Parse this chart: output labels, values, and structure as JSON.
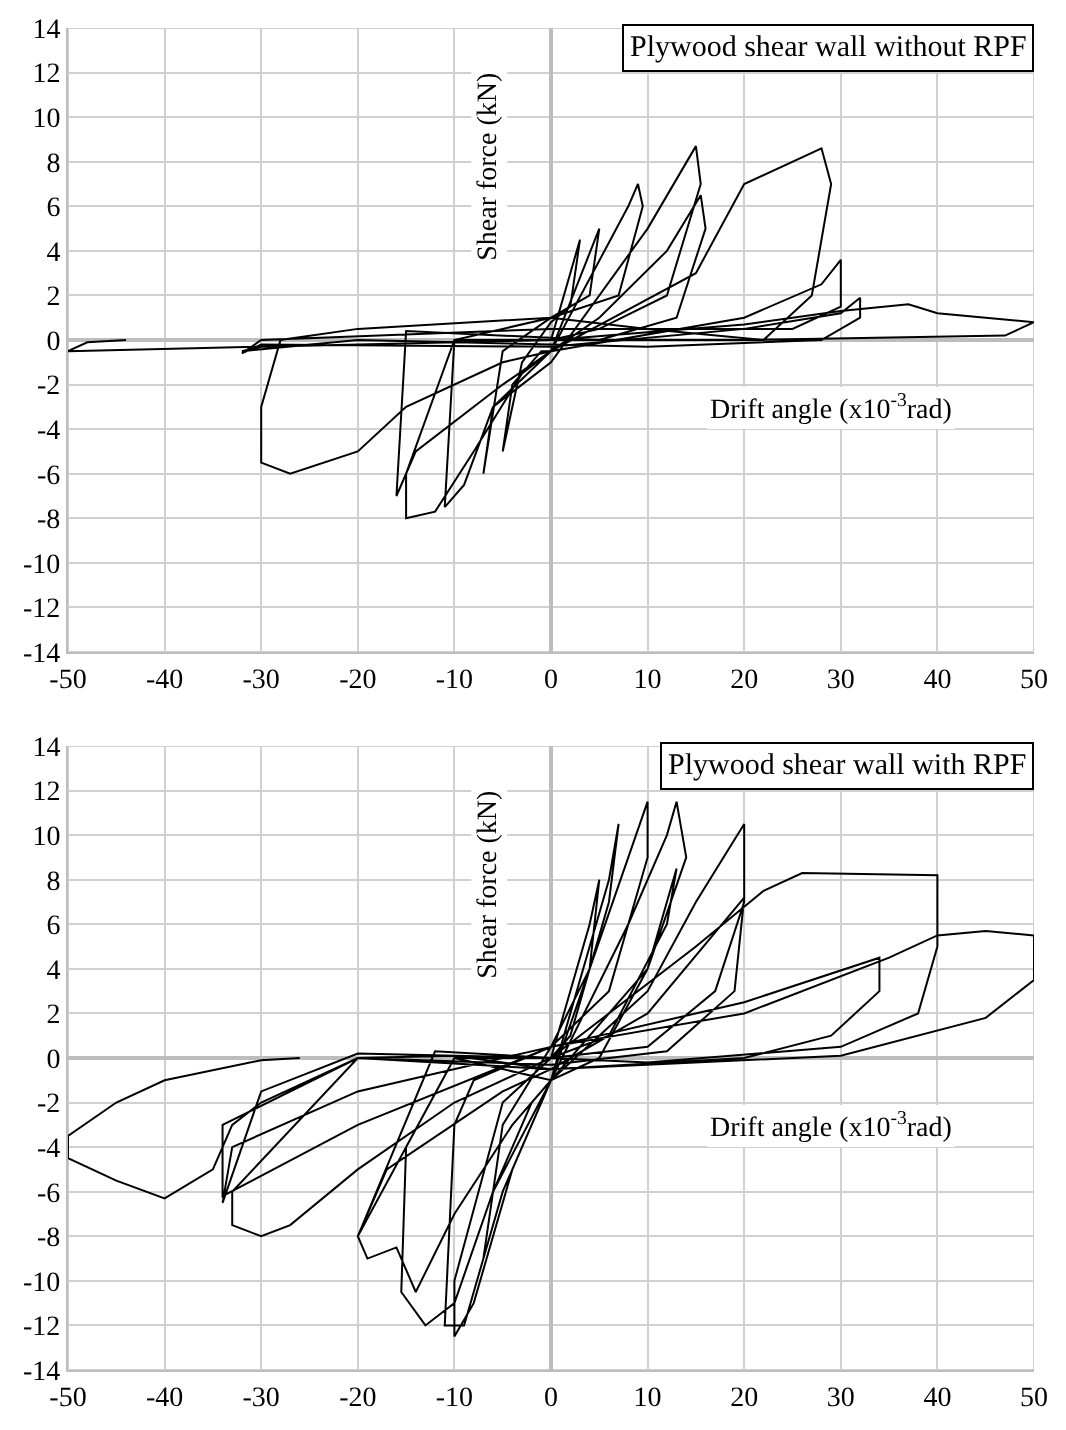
{
  "chart_data": [
    {
      "type": "line",
      "title": "Plywood shear wall without RPF",
      "xlabel": "Drift angle (x10$^{-3}$rad)",
      "ylabel": "Shear force (kN)",
      "xlim": [
        -50,
        50
      ],
      "ylim": [
        -14,
        14
      ],
      "xticks": [
        -50,
        -40,
        -30,
        -20,
        -10,
        0,
        10,
        20,
        30,
        40,
        50
      ],
      "yticks": [
        -14,
        -12,
        -10,
        -8,
        -6,
        -4,
        -2,
        0,
        2,
        4,
        6,
        8,
        10,
        12,
        14
      ],
      "grid": true,
      "marker": "none",
      "line_style": "solid",
      "series": [
        {
          "color": "#000000",
          "x": [
            0,
            3,
            2,
            0,
            -3,
            -5,
            -4,
            -1,
            0,
            5,
            4,
            0,
            -5,
            -7,
            -6,
            0,
            8,
            9,
            9.5,
            7,
            0,
            -10,
            -11,
            -9,
            -6,
            0,
            10,
            15,
            15.5,
            12,
            5,
            0,
            -10,
            -15,
            -15,
            -12,
            -8,
            -3,
            0,
            5,
            12,
            15.5,
            16,
            13,
            5,
            -15,
            -16,
            -14,
            -5,
            0,
            15,
            20,
            28,
            29,
            27,
            22,
            10,
            0,
            -20,
            -28,
            -30,
            -30,
            -27,
            -20,
            -15,
            -5,
            0,
            20,
            28,
            30,
            30,
            25,
            0,
            -30,
            -32,
            -30,
            0,
            20,
            30,
            32,
            32,
            28,
            10,
            -20,
            -32,
            -30,
            0,
            20,
            30,
            37,
            40,
            45,
            50,
            47,
            20,
            0,
            -30,
            -50,
            -48,
            -44
          ],
          "values": [
            0,
            4.5,
            1.5,
            0.8,
            -1,
            -5,
            -2,
            -0.5,
            -0.5,
            5,
            2,
            1,
            -0.5,
            -6,
            -3,
            -0.5,
            6,
            7,
            6,
            2,
            1,
            0,
            -7.5,
            -6.5,
            -3,
            -1,
            5,
            8.7,
            7,
            2,
            0.5,
            0,
            0,
            -6,
            -8,
            -7.7,
            -5,
            -1.5,
            -0.5,
            1,
            4,
            6.5,
            5,
            1,
            0,
            0.4,
            -7,
            -5,
            -2,
            -0.5,
            3,
            7,
            8.6,
            7,
            2,
            0,
            0.5,
            1,
            0.5,
            0,
            -3,
            -5.5,
            -6,
            -5,
            -3,
            -1,
            -0.5,
            1,
            2.5,
            3.6,
            1.5,
            0.5,
            0.5,
            0,
            -0.6,
            -0.2,
            -0.3,
            0.5,
            1.2,
            1.9,
            1,
            0,
            -0.3,
            0,
            -0.5,
            -0.3,
            0,
            0.7,
            1.3,
            1.6,
            1.2,
            1,
            0.8,
            0.2,
            0,
            0,
            -0.3,
            -0.5,
            -0.1,
            0
          ]
        }
      ]
    },
    {
      "type": "line",
      "title": "Plywood shear wall with RPF",
      "xlabel": "Drift angle (x10$^{-3}$rad)",
      "ylabel": "Shear force (kN)",
      "xlim": [
        -50,
        50
      ],
      "ylim": [
        -14,
        14
      ],
      "xticks": [
        -50,
        -40,
        -30,
        -20,
        -10,
        0,
        10,
        20,
        30,
        40,
        50
      ],
      "yticks": [
        -14,
        -12,
        -10,
        -8,
        -6,
        -4,
        -2,
        0,
        2,
        4,
        6,
        8,
        10,
        12,
        14
      ],
      "grid": true,
      "marker": "none",
      "line_style": "solid",
      "series": [
        {
          "color": "#000000",
          "x": [
            0,
            4,
            5,
            4,
            0,
            -5,
            -7,
            -6,
            -2,
            0,
            6,
            7,
            6,
            2,
            0,
            -5,
            -10,
            -10,
            -8,
            -4,
            0,
            8,
            10,
            10,
            6,
            0,
            -8,
            -10,
            -11,
            -9,
            -5,
            0,
            8,
            12,
            13,
            14,
            10,
            5,
            0,
            -10,
            -15,
            -15.5,
            -13,
            -10,
            -6,
            0,
            10,
            13,
            12,
            6,
            0,
            -10,
            -20,
            -19,
            -16,
            -14,
            -10,
            -4,
            0,
            10,
            15,
            20,
            20,
            17,
            10,
            0,
            -12,
            -20,
            -17,
            -5,
            0,
            10,
            20,
            19,
            12,
            0,
            -20,
            -33,
            -33,
            -30,
            -27,
            -20,
            -10,
            0,
            15,
            22,
            26,
            40,
            40,
            38,
            30,
            10,
            0,
            -20,
            -30,
            -34,
            -33,
            -20,
            0,
            20,
            34,
            34,
            29,
            20,
            0,
            -20,
            -34,
            -34,
            -20,
            0,
            20,
            35,
            40,
            45,
            50,
            50,
            45,
            30,
            0,
            -10,
            -20,
            -30,
            -33,
            -35,
            -40,
            -45,
            -50,
            -50,
            -45,
            -40,
            -30,
            -26
          ],
          "values": [
            0,
            6,
            8,
            4,
            0.5,
            -3,
            -9,
            -6,
            -2,
            -1,
            8,
            10.5,
            7,
            1,
            0,
            -2,
            -10,
            -12.5,
            -11,
            -5,
            -1,
            9,
            11.5,
            9,
            3,
            0.5,
            -1,
            -3,
            -12,
            -12,
            -6,
            -1,
            6,
            10,
            11.5,
            9,
            4,
            0,
            -1,
            0,
            -4,
            -10.5,
            -12,
            -11,
            -6,
            -1,
            4,
            8.5,
            6,
            1,
            0,
            0,
            -8,
            -9,
            -8.5,
            -10.5,
            -7,
            -3,
            -1,
            3,
            7,
            10.5,
            7,
            3,
            0.5,
            0,
            0.3,
            -8,
            -5,
            -1.5,
            -0.5,
            2,
            7.2,
            3,
            0.3,
            -0.3,
            0,
            -6,
            -7.5,
            -8,
            -7.5,
            -5,
            -2,
            0,
            5,
            7.5,
            8.3,
            8.2,
            5,
            2,
            0.5,
            -0.2,
            0,
            0.2,
            -1.5,
            -6.5,
            -4,
            -1.5,
            0.5,
            2.5,
            4.5,
            3,
            1,
            0,
            -0.5,
            0,
            -3,
            -6.2,
            -3,
            0.5,
            2,
            4.5,
            5.5,
            5.7,
            5.5,
            3.5,
            1.8,
            0.1,
            -0.5,
            0.1,
            0,
            -2,
            -3,
            -5,
            -6.3,
            -5.5,
            -4.5,
            -3.5,
            -2,
            -1,
            -0.1,
            0
          ]
        }
      ]
    }
  ]
}
